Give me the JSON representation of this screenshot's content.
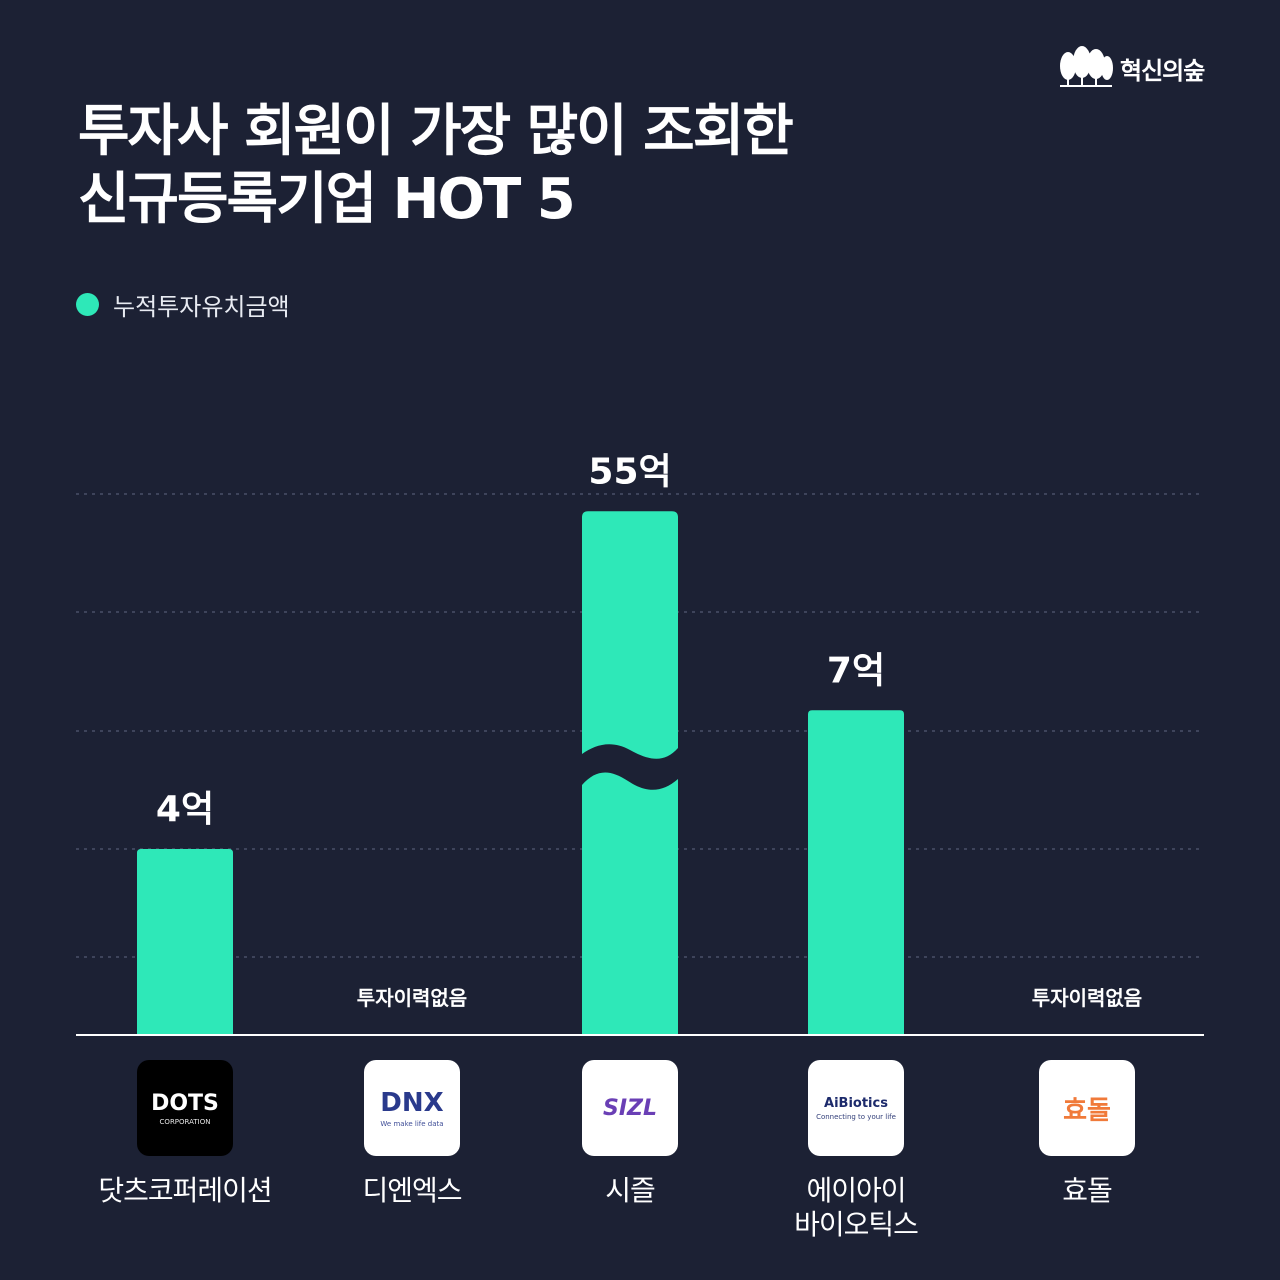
{
  "brand": {
    "name": "혁신의숲"
  },
  "title": {
    "line1": "투자사 회원이 가장 많이 조회한",
    "line2": "신규등록기업 HOT 5"
  },
  "colors": {
    "background": "#1c2134",
    "accent": "#2ee8b8",
    "grid": "#4a5068"
  },
  "chart_data": {
    "type": "bar",
    "series": [
      {
        "name": "누적투자유치금액",
        "values": [
          4,
          0,
          55,
          7,
          0
        ]
      }
    ],
    "categories": [
      "닷츠코퍼레이션",
      "디엔엑스",
      "시즐",
      "에이아이 바이오틱스",
      "효돌"
    ],
    "data_labels": [
      "4억",
      "투자이력없음",
      "55억",
      "7억",
      "투자이력없음"
    ],
    "unit": "억",
    "broken_axis_on": "시즐",
    "grid": true,
    "legend": "top-left"
  },
  "companies": [
    {
      "label_lines": [
        "닷츠코퍼레이션"
      ],
      "logo": {
        "text": "DOTS",
        "sub": "CORPORATION",
        "bg": "#000000",
        "color": "#ffffff"
      }
    },
    {
      "label_lines": [
        "디엔엑스"
      ],
      "logo": {
        "text": "DNX",
        "sub": "We make life data",
        "bg": "#ffffff",
        "color": "#2a3a8c"
      }
    },
    {
      "label_lines": [
        "시즐"
      ],
      "logo": {
        "text": "SIZL",
        "sub": "",
        "bg": "#ffffff",
        "color": "#6a3fb5"
      }
    },
    {
      "label_lines": [
        "에이아이",
        "바이오틱스"
      ],
      "logo": {
        "text": "AiBiotics",
        "sub": "Connecting to your life",
        "bg": "#ffffff",
        "color": "#1c2a6b"
      }
    },
    {
      "label_lines": [
        "효돌"
      ],
      "logo": {
        "text": "효돌",
        "sub": "",
        "bg": "#ffffff",
        "color": "#f07a3a"
      }
    }
  ]
}
